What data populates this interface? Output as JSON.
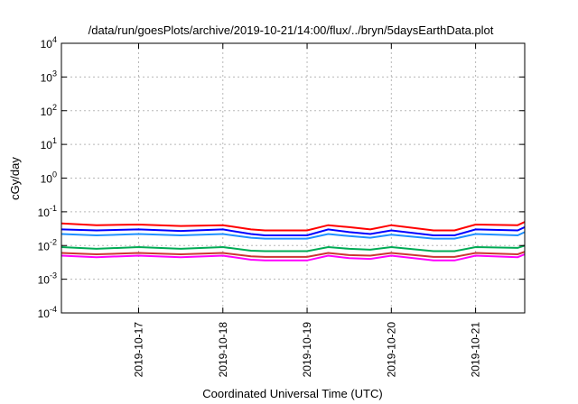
{
  "chart_data": {
    "type": "line",
    "title": "/data/run/goesPlots/archive/2019-10-21/14:00/flux/../bryn/5daysEarthData.plot",
    "xlabel": "Coordinated Universal Time (UTC)",
    "ylabel": "cGy/day",
    "yscale": "log",
    "ylim_exponents": [
      -4,
      4
    ],
    "ytick_exponents": [
      -4,
      -3,
      -2,
      -1,
      0,
      1,
      2,
      3,
      4
    ],
    "xlim_days": [
      "2019-10-16 02:00",
      "2019-10-21 14:00"
    ],
    "xticks": [
      "2019-10-17",
      "2019-10-18",
      "2019-10-19",
      "2019-10-20",
      "2019-10-21"
    ],
    "grid": true,
    "series": [
      {
        "color": "#ff0000",
        "x": [
          "2019-10-16 02:00",
          "2019-10-16 12:00",
          "2019-10-17 00:00",
          "2019-10-17 12:00",
          "2019-10-18 00:00",
          "2019-10-18 08:00",
          "2019-10-18 12:00",
          "2019-10-19 00:00",
          "2019-10-19 06:00",
          "2019-10-19 12:00",
          "2019-10-19 18:00",
          "2019-10-20 00:00",
          "2019-10-20 12:00",
          "2019-10-20 18:00",
          "2019-10-21 00:00",
          "2019-10-21 12:00",
          "2019-10-21 14:00"
        ],
        "values": [
          0.045,
          0.04,
          0.042,
          0.038,
          0.04,
          0.03,
          0.028,
          0.028,
          0.04,
          0.035,
          0.03,
          0.04,
          0.028,
          0.028,
          0.042,
          0.04,
          0.05
        ]
      },
      {
        "color": "#0000ff",
        "x": [
          "2019-10-16 02:00",
          "2019-10-16 12:00",
          "2019-10-17 00:00",
          "2019-10-17 12:00",
          "2019-10-18 00:00",
          "2019-10-18 08:00",
          "2019-10-18 12:00",
          "2019-10-19 00:00",
          "2019-10-19 06:00",
          "2019-10-19 12:00",
          "2019-10-19 18:00",
          "2019-10-20 00:00",
          "2019-10-20 12:00",
          "2019-10-20 18:00",
          "2019-10-21 00:00",
          "2019-10-21 12:00",
          "2019-10-21 14:00"
        ],
        "values": [
          0.03,
          0.028,
          0.03,
          0.027,
          0.03,
          0.022,
          0.02,
          0.02,
          0.03,
          0.025,
          0.022,
          0.028,
          0.02,
          0.02,
          0.03,
          0.028,
          0.035
        ]
      },
      {
        "color": "#1e90ff",
        "x": [
          "2019-10-16 02:00",
          "2019-10-16 12:00",
          "2019-10-17 00:00",
          "2019-10-17 12:00",
          "2019-10-18 00:00",
          "2019-10-18 08:00",
          "2019-10-18 12:00",
          "2019-10-19 00:00",
          "2019-10-19 06:00",
          "2019-10-19 12:00",
          "2019-10-19 18:00",
          "2019-10-20 00:00",
          "2019-10-20 12:00",
          "2019-10-20 18:00",
          "2019-10-21 00:00",
          "2019-10-21 12:00",
          "2019-10-21 14:00"
        ],
        "values": [
          0.022,
          0.02,
          0.022,
          0.02,
          0.022,
          0.017,
          0.016,
          0.016,
          0.022,
          0.019,
          0.017,
          0.021,
          0.016,
          0.016,
          0.022,
          0.02,
          0.025
        ]
      },
      {
        "color": "#00aa55",
        "x": [
          "2019-10-16 02:00",
          "2019-10-16 12:00",
          "2019-10-17 00:00",
          "2019-10-17 12:00",
          "2019-10-18 00:00",
          "2019-10-18 08:00",
          "2019-10-18 12:00",
          "2019-10-19 00:00",
          "2019-10-19 06:00",
          "2019-10-19 12:00",
          "2019-10-19 18:00",
          "2019-10-20 00:00",
          "2019-10-20 12:00",
          "2019-10-20 18:00",
          "2019-10-21 00:00",
          "2019-10-21 12:00",
          "2019-10-21 14:00"
        ],
        "values": [
          0.009,
          0.008,
          0.009,
          0.008,
          0.009,
          0.007,
          0.0068,
          0.0068,
          0.009,
          0.008,
          0.0075,
          0.009,
          0.0068,
          0.0068,
          0.009,
          0.0085,
          0.01
        ]
      },
      {
        "color": "#cc3333",
        "x": [
          "2019-10-16 02:00",
          "2019-10-16 12:00",
          "2019-10-17 00:00",
          "2019-10-17 12:00",
          "2019-10-18 00:00",
          "2019-10-18 08:00",
          "2019-10-18 12:00",
          "2019-10-19 00:00",
          "2019-10-19 06:00",
          "2019-10-19 12:00",
          "2019-10-19 18:00",
          "2019-10-20 00:00",
          "2019-10-20 12:00",
          "2019-10-20 18:00",
          "2019-10-21 00:00",
          "2019-10-21 12:00",
          "2019-10-21 14:00"
        ],
        "values": [
          0.006,
          0.0055,
          0.006,
          0.0055,
          0.006,
          0.0048,
          0.0046,
          0.0046,
          0.006,
          0.0052,
          0.005,
          0.006,
          0.0046,
          0.0046,
          0.006,
          0.0055,
          0.0065
        ]
      },
      {
        "color": "#ff00ff",
        "x": [
          "2019-10-16 02:00",
          "2019-10-16 12:00",
          "2019-10-17 00:00",
          "2019-10-17 12:00",
          "2019-10-18 00:00",
          "2019-10-18 08:00",
          "2019-10-18 12:00",
          "2019-10-19 00:00",
          "2019-10-19 06:00",
          "2019-10-19 12:00",
          "2019-10-19 18:00",
          "2019-10-20 00:00",
          "2019-10-20 12:00",
          "2019-10-20 18:00",
          "2019-10-21 00:00",
          "2019-10-21 12:00",
          "2019-10-21 14:00"
        ],
        "values": [
          0.005,
          0.0045,
          0.005,
          0.0045,
          0.005,
          0.0038,
          0.0036,
          0.0036,
          0.005,
          0.0042,
          0.004,
          0.005,
          0.0036,
          0.0036,
          0.005,
          0.0045,
          0.0055
        ]
      }
    ]
  }
}
